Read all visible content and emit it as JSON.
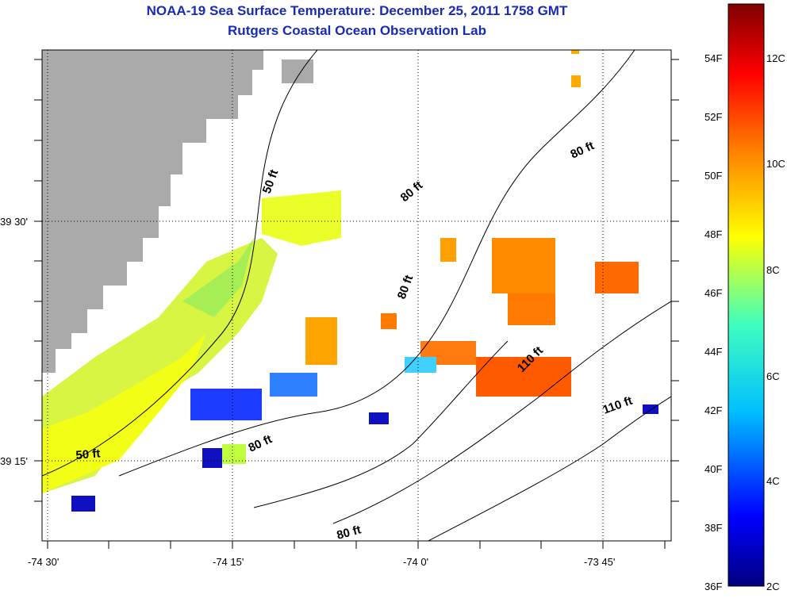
{
  "title": {
    "line1": "NOAA-19 Sea Surface Temperature:  December 25, 2011 1758 GMT",
    "line2": "Rutgers Coastal Ocean Observation Lab"
  },
  "axes": {
    "longitude_labels": [
      "-74 30'",
      "-74 15'",
      "-74 0'",
      "-73 45'"
    ],
    "latitude_labels": [
      "39 30'",
      "39 15'"
    ]
  },
  "depth_contour_labels": [
    "50 ft",
    "80 ft",
    "80 ft",
    "80 ft",
    "80 ft",
    "110 ft",
    "110 ft",
    "50 ft",
    "80 ft"
  ],
  "colorbar": {
    "fahrenheit_labels": [
      "54F",
      "52F",
      "50F",
      "48F",
      "46F",
      "44F",
      "42F",
      "40F",
      "38F",
      "36F"
    ],
    "celsius_labels": [
      "12C",
      "10C",
      "8C",
      "6C",
      "4C",
      "2C"
    ],
    "colors": [
      "#00007f",
      "#0000ff",
      "#00bfff",
      "#3fffbf",
      "#ffff00",
      "#ff7f00",
      "#ff0000",
      "#7f0000"
    ]
  },
  "land_color": "#aaaaaa"
}
